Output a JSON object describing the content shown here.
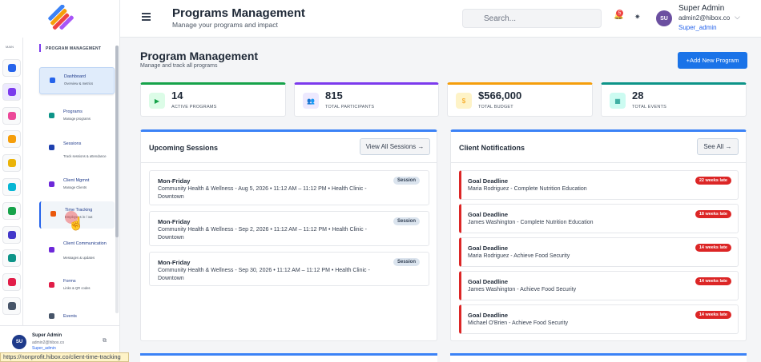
{
  "sidebar": {
    "main_label": "MAIN",
    "section_label": "PROGRAM MANAGEMENT",
    "items": [
      {
        "title": "Dashboard",
        "subtitle": "Overview & metrics"
      },
      {
        "title": "Programs",
        "subtitle": "Manage programs"
      },
      {
        "title": "Sessions",
        "subtitle": "Track sessions & attendance"
      },
      {
        "title": "Client Mgmnt",
        "subtitle": "Manage Clients"
      },
      {
        "title": "Time Tracking",
        "subtitle": "Employees in / out"
      },
      {
        "title": "Client Communication",
        "subtitle": "Messages & updates"
      },
      {
        "title": "Forms",
        "subtitle": "Links & QR codes"
      },
      {
        "title": "Events"
      }
    ],
    "user": {
      "initials": "SU",
      "name": "Super Admin",
      "email": "admin2@hibox.co",
      "role": "Super_admin"
    }
  },
  "header": {
    "title": "Programs Management",
    "subtitle": "Manage your programs and impact",
    "search_placeholder": "Search...",
    "notification_count": 5,
    "user": {
      "initials": "SU",
      "name": "Super Admin",
      "email": "admin2@hibox.co",
      "role": "Super_admin"
    }
  },
  "page": {
    "title": "Program Management",
    "subtitle": "Manage and track all programs",
    "add_button": "+Add New Program"
  },
  "stats": [
    {
      "value": 14,
      "label": "ACTIVE PROGRAMS"
    },
    {
      "value": 815,
      "label": "TOTAL PARTICIPANTS"
    },
    {
      "value": "$566,000",
      "label": "TOTAL BUDGET"
    },
    {
      "value": 28,
      "label": "TOTAL EVENTS"
    }
  ],
  "sessions": {
    "title": "Upcoming Sessions",
    "button": "View All Sessions →",
    "items": [
      {
        "title": "Mon-Friday",
        "detail": "Community Health & Wellness - Aug 5, 2026 • 11:12 AM – 11:12 PM • Health Clinic - Downtown",
        "badge": "Session"
      },
      {
        "title": "Mon-Friday",
        "detail": "Community Health & Wellness - Sep 2, 2026 • 11:12 AM – 11:12 PM • Health Clinic - Downtown",
        "badge": "Session"
      },
      {
        "title": "Mon-Friday",
        "detail": "Community Health & Wellness - Sep 30, 2026 • 11:12 AM – 11:12 PM • Health Clinic - Downtown",
        "badge": "Session"
      }
    ]
  },
  "notifications": {
    "title": "Client Notifications",
    "button": "See All →",
    "items": [
      {
        "title": "Goal Deadline",
        "detail": "Maria Rodriguez - Complete Nutrition Education",
        "badge": "22 weeks late"
      },
      {
        "title": "Goal Deadline",
        "detail": "James Washington - Complete Nutrition Education",
        "badge": "18 weeks late"
      },
      {
        "title": "Goal Deadline",
        "detail": "Maria Rodriguez - Achieve Food Security",
        "badge": "14 weeks late"
      },
      {
        "title": "Goal Deadline",
        "detail": "James Washington - Achieve Food Security",
        "badge": "14 weeks late"
      },
      {
        "title": "Goal Deadline",
        "detail": "Michael O'Brien - Achieve Food Security",
        "badge": "14 weeks late"
      }
    ]
  },
  "status_bar": "https://nonprofit.hibox.co/client-time-tracking"
}
